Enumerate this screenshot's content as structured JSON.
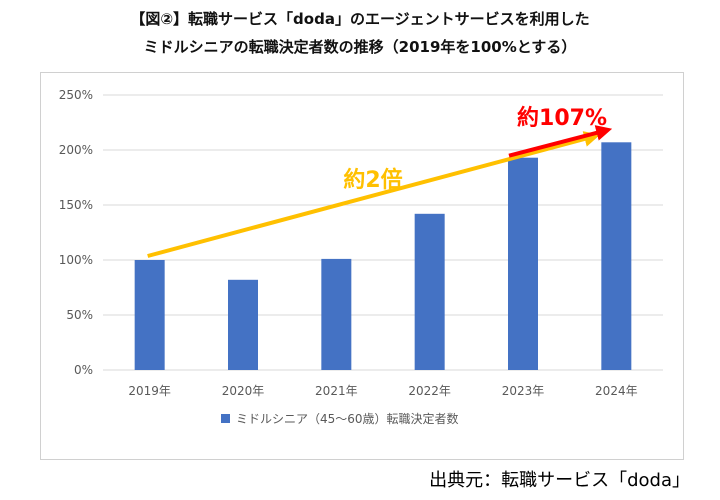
{
  "title_line1": "【図②】転職サービス「doda」のエージェントサービスを利用した",
  "title_line2": "ミドルシニアの転職決定者数の推移（2019年を100%とする）",
  "source": "出典元：転職サービス「doda」",
  "annotations": {
    "overall": "約2倍",
    "recent": "約107%"
  },
  "colors": {
    "bar": "#4472C4",
    "overall_arrow": "#FFC000",
    "recent_arrow": "#FF0000",
    "grid": "#d9d9d9",
    "axis_text": "#595959"
  },
  "chart_data": {
    "type": "bar",
    "categories": [
      "2019年",
      "2020年",
      "2021年",
      "2022年",
      "2023年",
      "2024年"
    ],
    "series": [
      {
        "name": "ミドルシニア（45〜60歳）転職決定者数",
        "values": [
          100,
          82,
          101,
          142,
          193,
          207
        ]
      }
    ],
    "ylim": [
      0,
      250
    ],
    "yticks": [
      0,
      50,
      100,
      150,
      200,
      250
    ],
    "ytick_labels": [
      "0%",
      "50%",
      "100%",
      "150%",
      "200%",
      "250%"
    ],
    "grid": true,
    "legend": "bottom"
  }
}
